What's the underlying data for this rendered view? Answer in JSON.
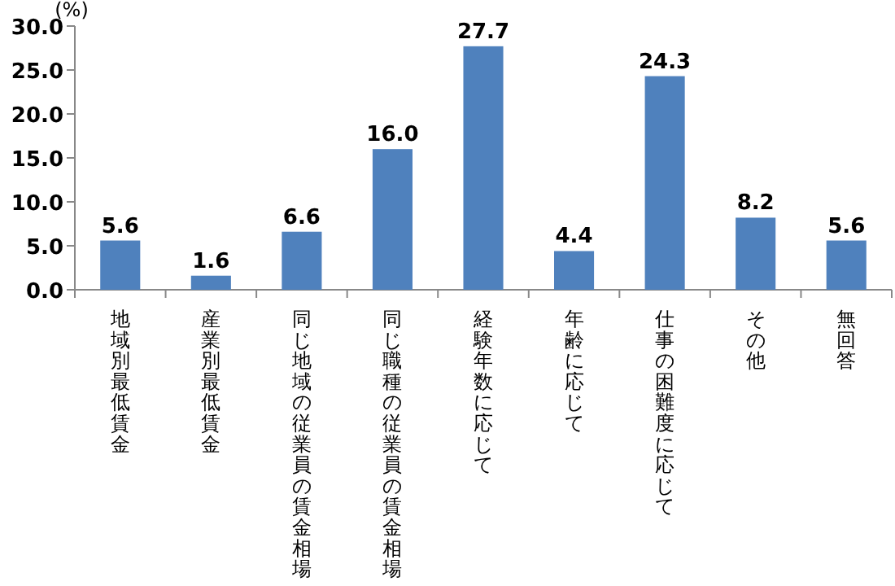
{
  "chart_data": {
    "type": "bar",
    "ylabel": "(%)",
    "categories": [
      "地域別最低賃金",
      "産業別最低賃金",
      "同じ地域の従業員の賃金相場",
      "同じ職種の従業員の賃金相場",
      "経験年数に応じて",
      "年齢に応じて",
      "仕事の困難度に応じて",
      "その他",
      "無回答"
    ],
    "values": [
      5.6,
      1.6,
      6.6,
      16.0,
      27.7,
      4.4,
      24.3,
      8.2,
      5.6
    ],
    "color": "#4f81bd",
    "ylim": [
      0,
      30
    ],
    "yticks": [
      {
        "value": 0,
        "label": "0.0"
      },
      {
        "value": 5,
        "label": "5.0"
      },
      {
        "value": 10,
        "label": "10.0"
      },
      {
        "value": 15,
        "label": "15.0"
      },
      {
        "value": 20,
        "label": "20.0"
      },
      {
        "value": 25,
        "label": "25.0"
      },
      {
        "value": 30,
        "label": "30.0"
      }
    ],
    "value_labels": [
      "5.6",
      "1.6",
      "6.6",
      "16.0",
      "27.7",
      "4.4",
      "24.3",
      "8.2",
      "5.6"
    ]
  }
}
